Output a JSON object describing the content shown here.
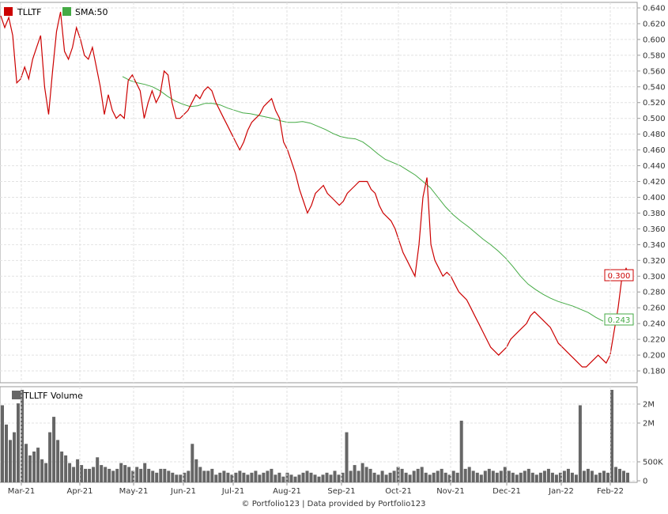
{
  "chart_data": [
    {
      "type": "line",
      "legend": {
        "placement": "top-left"
      },
      "series": [
        {
          "name": "TLLTF",
          "color": "#cc0000",
          "values": [
            0.63,
            0.615,
            0.628,
            0.605,
            0.545,
            0.55,
            0.565,
            0.55,
            0.575,
            0.59,
            0.605,
            0.54,
            0.505,
            0.56,
            0.61,
            0.635,
            0.585,
            0.575,
            0.59,
            0.615,
            0.6,
            0.58,
            0.575,
            0.59,
            0.565,
            0.54,
            0.505,
            0.53,
            0.51,
            0.5,
            0.505,
            0.5,
            0.548,
            0.555,
            0.545,
            0.535,
            0.5,
            0.52,
            0.535,
            0.52,
            0.53,
            0.56,
            0.555,
            0.52,
            0.5,
            0.5,
            0.505,
            0.51,
            0.52,
            0.53,
            0.525,
            0.535,
            0.54,
            0.535,
            0.52,
            0.51,
            0.5,
            0.49,
            0.48,
            0.47,
            0.46,
            0.47,
            0.485,
            0.495,
            0.5,
            0.505,
            0.515,
            0.52,
            0.525,
            0.51,
            0.5,
            0.47,
            0.46,
            0.445,
            0.43,
            0.41,
            0.395,
            0.38,
            0.39,
            0.405,
            0.41,
            0.415,
            0.405,
            0.4,
            0.395,
            0.39,
            0.395,
            0.405,
            0.41,
            0.415,
            0.42,
            0.42,
            0.42,
            0.41,
            0.405,
            0.39,
            0.38,
            0.375,
            0.37,
            0.36,
            0.345,
            0.33,
            0.32,
            0.31,
            0.3,
            0.34,
            0.4,
            0.425,
            0.34,
            0.32,
            0.31,
            0.3,
            0.305,
            0.3,
            0.29,
            0.28,
            0.275,
            0.27,
            0.26,
            0.25,
            0.24,
            0.23,
            0.22,
            0.21,
            0.205,
            0.2,
            0.205,
            0.21,
            0.22,
            0.225,
            0.23,
            0.235,
            0.24,
            0.25,
            0.255,
            0.25,
            0.245,
            0.24,
            0.235,
            0.225,
            0.215,
            0.21,
            0.205,
            0.2,
            0.195,
            0.19,
            0.185,
            0.185,
            0.19,
            0.195,
            0.2,
            0.195,
            0.19,
            0.2,
            0.23,
            0.26,
            0.3,
            0.31,
            0.3
          ]
        },
        {
          "name": "SMA:50",
          "color": "#44aa44",
          "values": [
            0.553,
            0.548,
            0.545,
            0.543,
            0.54,
            0.535,
            0.528,
            0.522,
            0.518,
            0.515,
            0.516,
            0.519,
            0.519,
            0.517,
            0.513,
            0.51,
            0.507,
            0.506,
            0.504,
            0.502,
            0.5,
            0.497,
            0.495,
            0.495,
            0.496,
            0.494,
            0.49,
            0.486,
            0.481,
            0.477,
            0.475,
            0.474,
            0.47,
            0.463,
            0.455,
            0.448,
            0.444,
            0.44,
            0.434,
            0.428,
            0.42,
            0.412,
            0.4,
            0.388,
            0.378,
            0.37,
            0.363,
            0.355,
            0.347,
            0.34,
            0.332,
            0.323,
            0.312,
            0.3,
            0.29,
            0.283,
            0.277,
            0.272,
            0.268,
            0.265,
            0.262,
            0.258,
            0.254,
            0.248,
            0.243
          ]
        }
      ],
      "last_value_labels": [
        "0.300",
        "0.243"
      ],
      "y_ticks": [
        "0.640",
        "0.620",
        "0.600",
        "0.580",
        "0.560",
        "0.540",
        "0.520",
        "0.500",
        "0.480",
        "0.460",
        "0.440",
        "0.420",
        "0.400",
        "0.380",
        "0.360",
        "0.340",
        "0.320",
        "0.300",
        "0.280",
        "0.260",
        "0.240",
        "0.220",
        "0.200",
        "0.180"
      ],
      "ylim": [
        0.165,
        0.647
      ],
      "grid": true
    },
    {
      "type": "bar",
      "legend": {
        "placement": "top-left"
      },
      "series": [
        {
          "name": "TLLTF Volume",
          "color": "#666666",
          "values": [
            2000,
            1500,
            1100,
            1300,
            2050,
            2400,
            1000,
            700,
            800,
            900,
            600,
            500,
            1300,
            1700,
            1100,
            800,
            700,
            500,
            400,
            600,
            450,
            350,
            350,
            400,
            650,
            450,
            400,
            350,
            300,
            350,
            500,
            450,
            400,
            300,
            400,
            350,
            500,
            350,
            300,
            250,
            350,
            350,
            300,
            250,
            200,
            200,
            250,
            300,
            1000,
            600,
            400,
            300,
            300,
            350,
            200,
            250,
            300,
            250,
            200,
            250,
            300,
            250,
            200,
            250,
            300,
            200,
            250,
            300,
            350,
            200,
            250,
            150,
            250,
            200,
            150,
            200,
            250,
            300,
            250,
            200,
            150,
            200,
            250,
            200,
            300,
            200,
            250,
            1300,
            300,
            450,
            300,
            500,
            400,
            350,
            250,
            200,
            300,
            200,
            250,
            300,
            400,
            350,
            250,
            200,
            300,
            350,
            400,
            250,
            200,
            250,
            300,
            350,
            250,
            200,
            300,
            250,
            1600,
            350,
            400,
            300,
            250,
            200,
            300,
            350,
            300,
            250,
            300,
            400,
            300,
            250,
            200,
            250,
            300,
            350,
            250,
            200,
            250,
            300,
            350,
            250,
            200,
            250,
            300,
            350,
            250,
            200,
            2000,
            300,
            350,
            300,
            200,
            250,
            300,
            250,
            2400,
            400,
            350,
            300,
            250
          ]
        }
      ],
      "y_ticks": [
        "2M",
        "2M",
        "500K",
        "0"
      ],
      "ylim": [
        0,
        2400
      ]
    }
  ],
  "x_ticks": [
    "Mar-21",
    "Apr-21",
    "May-21",
    "Jun-21",
    "Jul-21",
    "Aug-21",
    "Sep-21",
    "Oct-21",
    "Nov-21",
    "Dec-21",
    "Jan-22",
    "Feb-22"
  ],
  "footer": "© Portfolio123 | Data provided by Portfolio123"
}
